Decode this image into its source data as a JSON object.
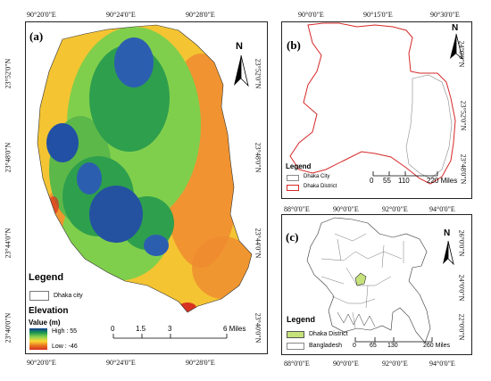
{
  "panel_a": {
    "label": "(a)",
    "top_lon": [
      "90°20'0\"E",
      "90°24'0\"E",
      "90°28'0\"E"
    ],
    "bottom_lon": [
      "90°20'0\"E",
      "90°24'0\"E",
      "90°28'0\"E"
    ],
    "left_lat": [
      "23°52'0\"N",
      "23°48'0\"N",
      "23°44'0\"N",
      "23°40'0\"N"
    ],
    "right_lat": [
      "23°52'0\"N",
      "23°48'0\"N",
      "23°44'0\"N",
      "23°40'0\"N"
    ],
    "north": "N",
    "legend_title": "Legend",
    "legend_item": "Dhaka city",
    "elevation_title": "Elevation",
    "value_label": "Value (m)",
    "high_label": "High : 55",
    "low_label": "Low : -46",
    "scale_ticks": [
      "0",
      "1.5",
      "3",
      "6 Miles"
    ],
    "colors": {
      "high": "#0a3d8f",
      "mid_high": "#1a9850",
      "mid": "#8fd14f",
      "mid_low": "#fdd835",
      "low": "#e87722",
      "lowest": "#d7301f"
    }
  },
  "panel_b": {
    "label": "(b)",
    "top_lon": [
      "90°0'0\"E",
      "90°15'0\"E",
      "90°30'0\"E"
    ],
    "right_lat": [
      "24°0'0\"N",
      "23°52'0\"N",
      "23°48'0\"N"
    ],
    "north": "N",
    "legend_title": "Legend",
    "legend_items": [
      "Dhaka City",
      "Dhaka District"
    ],
    "scale_ticks": [
      "0",
      "55",
      "110",
      "220 Miles"
    ],
    "colors": {
      "district": "#d62828",
      "city": "#999999"
    }
  },
  "panel_c": {
    "label": "(c)",
    "top_lon": [
      "88°0'0\"E",
      "90°0'0\"E",
      "92°0'0\"E",
      "94°0'0\"E"
    ],
    "bottom_lon": [
      "88°0'0\"E",
      "90°0'0\"E",
      "92°0'0\"E",
      "94°0'0\"E"
    ],
    "right_lat": [
      "26°0'0\"N",
      "24°0'0\"N",
      "22°0'0\"N"
    ],
    "north": "N",
    "legend_title": "Legend",
    "legend_items": [
      "Dhaka District",
      "Bangladesh"
    ],
    "scale_ticks": [
      "0",
      "65",
      "130",
      "260 Miles"
    ],
    "colors": {
      "district_fill": "#c5e17a"
    }
  }
}
